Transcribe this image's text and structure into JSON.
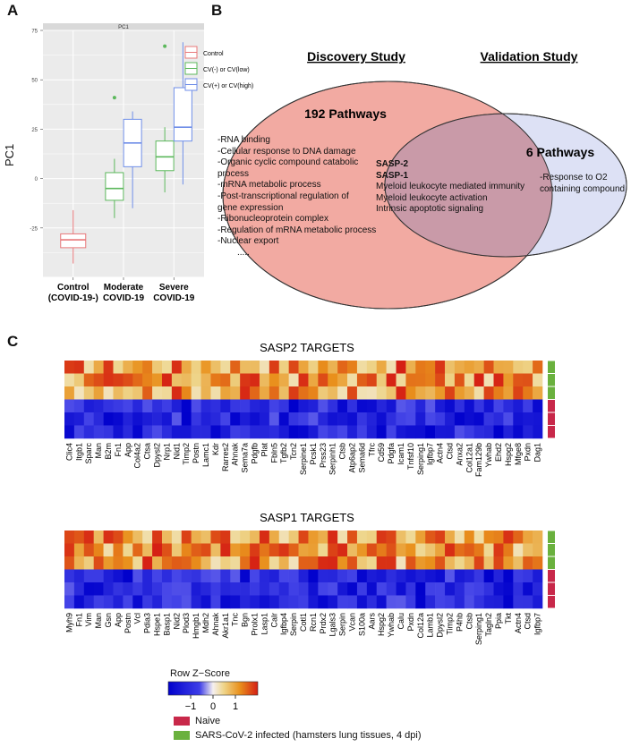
{
  "panels": {
    "a": "A",
    "b": "B",
    "c": "C"
  },
  "colors": {
    "control": "#e8787a",
    "moderate": "#5cb85c",
    "severe": "#6f8ee8",
    "panel_bg": "#ebebeb",
    "strip": "#d9d9d9",
    "venn_left": "#f2aaa2",
    "venn_right": "#dde1f5",
    "venn_overlap": "#c99aa8",
    "naive": "#c8284a",
    "infected": "#6ab13e"
  },
  "chart_data": [
    {
      "type": "box",
      "strip_label": "PC1",
      "ylabel": "PC1",
      "ylim": [
        -50,
        75
      ],
      "yticks": [
        75,
        50,
        25,
        0,
        -25
      ],
      "categories": [
        "Control\n(COVID-19-)",
        "Moderate\nCOVID-19",
        "Severe\nCOVID-19"
      ],
      "category_lines": [
        [
          "Control",
          "(COVID-19-)"
        ],
        [
          "Moderate",
          "COVID-19"
        ],
        [
          "Severe",
          "COVID-19"
        ]
      ],
      "legend": [
        "Control",
        "CV(-) or CV(low)",
        "CV(+) or CV(high)"
      ],
      "boxes": [
        {
          "group": "Control",
          "x": 0,
          "series": "Control",
          "whisker_low": -43,
          "q1": -35,
          "median": -31,
          "q3": -28,
          "whisker_high": -16,
          "outliers": []
        },
        {
          "group": "Moderate",
          "x": 0.82,
          "series": "CV(-) or CV(low)",
          "whisker_low": -20,
          "q1": -11,
          "median": -5,
          "q3": 3,
          "whisker_high": 10,
          "outliers": [
            41
          ]
        },
        {
          "group": "Moderate",
          "x": 1.18,
          "series": "CV(+) or CV(high)",
          "whisker_low": -15,
          "q1": 6,
          "median": 18,
          "q3": 30,
          "whisker_high": 34,
          "outliers": []
        },
        {
          "group": "Severe",
          "x": 1.82,
          "series": "CV(-) or CV(low)",
          "whisker_low": -7,
          "q1": 4,
          "median": 11,
          "q3": 19,
          "whisker_high": 26,
          "outliers": [
            67
          ]
        },
        {
          "group": "Severe",
          "x": 2.18,
          "series": "CV(+) or CV(high)",
          "whisker_low": -3,
          "q1": 19,
          "median": 26,
          "q3": 46,
          "whisker_high": 69,
          "outliers": []
        }
      ]
    },
    {
      "type": "heatmap",
      "title": "SASP2 TARGETS",
      "genes": [
        "Clic4",
        "Itgb1",
        "Sparc",
        "Man",
        "B2m",
        "Fn1",
        "App",
        "Col4a2",
        "Ctsa",
        "Dpysl2",
        "Nrp1",
        "Nid1",
        "Timp2",
        "Postn",
        "Lamc1",
        "Kdr",
        "Rarres2",
        "Ahnak",
        "Sema7a",
        "Pdgfb",
        "Plat",
        "Fbln5",
        "Tgfb2",
        "Tcn2",
        "Serpine1",
        "Pcsk1",
        "Prss23",
        "Serpinh1",
        "Ctsb",
        "Atp6ap2",
        "Sema6d",
        "Tfrc",
        "Cd59",
        "Pdgfa",
        "Icam1",
        "Tnfsf10",
        "Serping1",
        "Igfbp7",
        "Actn4",
        "Ctsd",
        "Anxa2",
        "Col12a1",
        "Fam129b",
        "Ywhab",
        "Ehd2",
        "Hspg2",
        "Mfge8",
        "Pxdn",
        "Dag1"
      ],
      "rows": [
        "SARS-CoV-2 infected",
        "SARS-CoV-2 infected",
        "SARS-CoV-2 infected",
        "Naive",
        "Naive",
        "Naive"
      ]
    },
    {
      "type": "heatmap",
      "title": "SASP1 TARGETS",
      "genes": [
        "Myh9",
        "Fn1",
        "Vim",
        "Man",
        "Gsn",
        "App",
        "Postn",
        "Vcl",
        "Pdia3",
        "Hspe1",
        "Basp1",
        "Nid2",
        "Plod3",
        "Hmgb1",
        "Mdh2",
        "Ahnak",
        "Akr1a1",
        "Tnc",
        "Bgn",
        "Prolx1",
        "Lasp1",
        "Calr",
        "Igfbp4",
        "Serpin",
        "Cotl1",
        "Rcn1",
        "Prdx2",
        "Lgals3",
        "Serpin",
        "Vcan",
        "S100a",
        "Aars",
        "Hspg2",
        "Ywhab",
        "Calu",
        "Pxdn",
        "Col12a",
        "Lamb1",
        "Dpysl2",
        "Timp2",
        "P4hb",
        "Ctsb",
        "Serping1",
        "Tagln2",
        "Ppia",
        "Tkt",
        "Actn4",
        "Ctsd",
        "Igfbp7"
      ],
      "rows": [
        "SARS-CoV-2 infected",
        "SARS-CoV-2 infected",
        "SARS-CoV-2 infected",
        "Naive",
        "Naive",
        "Naive"
      ]
    }
  ],
  "venn": {
    "discovery_title": "Discovery Study",
    "validation_title": "Validation Study",
    "left_title": "192 Pathways",
    "right_title": "6 Pathways",
    "left_items": [
      "-RNA binding",
      "-Cellular response to DNA damage",
      "-Organic cyclic compound catabolic",
      "process",
      "-mRNA metabolic process",
      "-Post-transcriptional regulation of",
      "gene expression",
      "-Ribonucleoprotein complex",
      "-Regulation of mRNA metabolic process",
      "-Nuclear export",
      "....."
    ],
    "overlap_bold": [
      "SASP-2",
      "SASP-1"
    ],
    "overlap_items": [
      "Myeloid leukocyte mediated immunity",
      "Myeloid leukocyte activation",
      "Intrinsic apoptotic signaling"
    ],
    "right_items": [
      "-Response to O2",
      "containing compound"
    ]
  },
  "heatmap_legend": {
    "title": "Row Z−Score",
    "ticks": [
      "−1",
      "0",
      "1"
    ],
    "naive": "Naive",
    "infected": "SARS-CoV-2 infected (hamsters lung tissues, 4 dpi)"
  }
}
